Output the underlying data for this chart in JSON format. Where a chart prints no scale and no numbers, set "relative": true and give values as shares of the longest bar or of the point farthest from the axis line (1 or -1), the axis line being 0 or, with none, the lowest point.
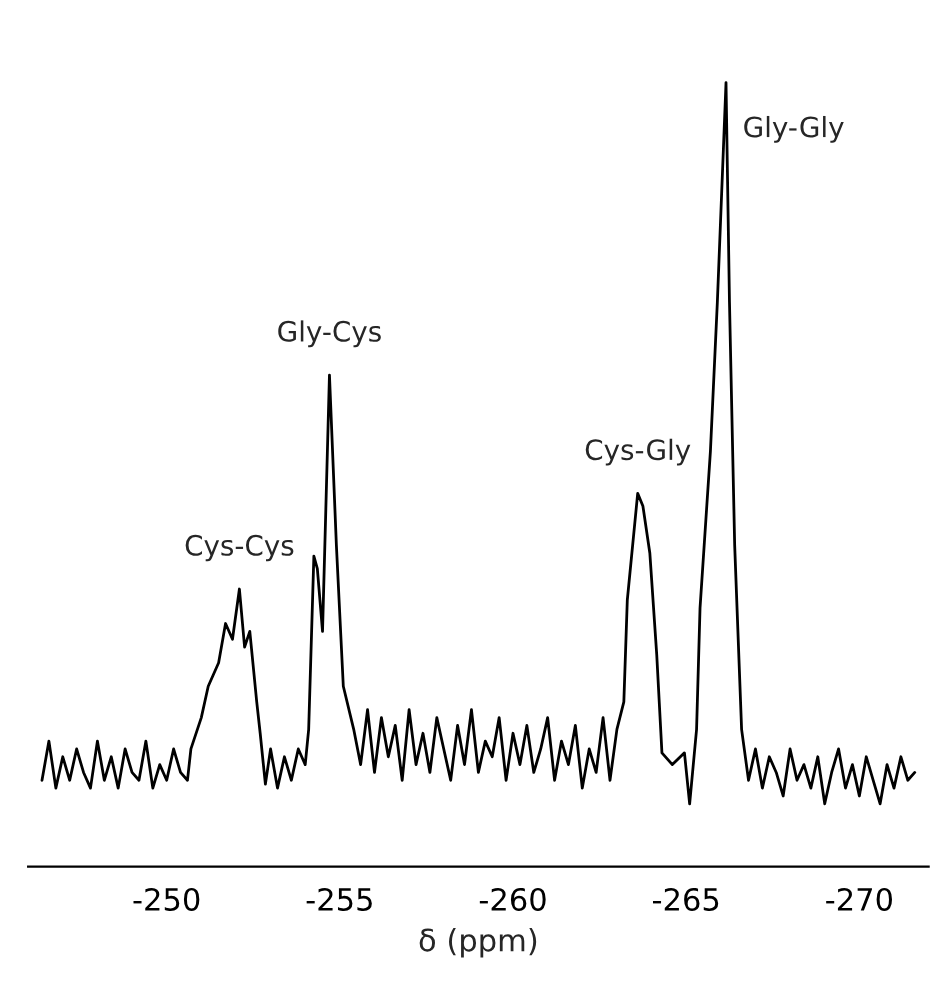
{
  "chart_data": {
    "type": "line",
    "relative": true,
    "xlabel": "δ (ppm)",
    "xlim": [
      -246.0,
      -272.0
    ],
    "xticks": [
      -250,
      -255,
      -260,
      -265,
      -270
    ],
    "grid": false,
    "marker": "none",
    "line_style": "solid",
    "series": [
      {
        "color": "#000000",
        "x": [
          -246.4,
          -246.6,
          -246.8,
          -247.0,
          -247.2,
          -247.4,
          -247.6,
          -247.8,
          -248.0,
          -248.2,
          -248.4,
          -248.6,
          -248.8,
          -249.0,
          -249.2,
          -249.4,
          -249.6,
          -249.8,
          -250.0,
          -250.2,
          -250.4,
          -250.6,
          -250.7,
          -251.0,
          -251.2,
          -251.5,
          -251.7,
          -251.9,
          -252.1,
          -252.25,
          -252.4,
          -252.6,
          -252.7,
          -252.85,
          -253.0,
          -253.2,
          -253.4,
          -253.6,
          -253.8,
          -254.0,
          -254.1,
          -254.25,
          -254.35,
          -254.5,
          -254.7,
          -254.9,
          -255.1,
          -255.4,
          -255.6,
          -255.8,
          -256.0,
          -256.2,
          -256.4,
          -256.6,
          -256.8,
          -257.0,
          -257.2,
          -257.4,
          -257.6,
          -257.8,
          -258.0,
          -258.2,
          -258.4,
          -258.6,
          -258.8,
          -259.0,
          -259.2,
          -259.4,
          -259.6,
          -259.8,
          -260.0,
          -260.2,
          -260.4,
          -260.6,
          -260.8,
          -261.0,
          -261.2,
          -261.4,
          -261.6,
          -261.8,
          -262.0,
          -262.2,
          -262.4,
          -262.6,
          -262.8,
          -263.0,
          -263.2,
          -263.3,
          -263.6,
          -263.75,
          -263.95,
          -264.15,
          -264.3,
          -264.6,
          -264.95,
          -265.1,
          -265.3,
          -265.4,
          -265.7,
          -265.9,
          -266.15,
          -266.25,
          -266.4,
          -266.6,
          -266.8,
          -267.0,
          -267.2,
          -267.4,
          -267.6,
          -267.8,
          -268.0,
          -268.2,
          -268.4,
          -268.6,
          -268.8,
          -269.0,
          -269.2,
          -269.4,
          -269.6,
          -269.8,
          -270.0,
          -270.2,
          -270.4,
          -270.6,
          -270.8,
          -271.0,
          -271.2,
          -271.4,
          -271.6
        ],
        "values": [
          0.11,
          0.16,
          0.1,
          0.14,
          0.11,
          0.15,
          0.12,
          0.1,
          0.16,
          0.11,
          0.14,
          0.1,
          0.15,
          0.12,
          0.11,
          0.16,
          0.1,
          0.13,
          0.11,
          0.15,
          0.12,
          0.11,
          0.15,
          0.19,
          0.23,
          0.26,
          0.31,
          0.29,
          0.354,
          0.28,
          0.3,
          0.21,
          0.17,
          0.105,
          0.15,
          0.1,
          0.14,
          0.11,
          0.15,
          0.13,
          0.175,
          0.396,
          0.38,
          0.3,
          0.627,
          0.41,
          0.23,
          0.175,
          0.13,
          0.2,
          0.12,
          0.19,
          0.14,
          0.18,
          0.11,
          0.2,
          0.13,
          0.17,
          0.12,
          0.19,
          0.15,
          0.11,
          0.18,
          0.13,
          0.2,
          0.12,
          0.16,
          0.14,
          0.19,
          0.11,
          0.17,
          0.13,
          0.18,
          0.12,
          0.15,
          0.19,
          0.11,
          0.16,
          0.13,
          0.18,
          0.1,
          0.15,
          0.12,
          0.19,
          0.11,
          0.175,
          0.21,
          0.34,
          0.476,
          0.46,
          0.4,
          0.27,
          0.145,
          0.13,
          0.145,
          0.08,
          0.175,
          0.33,
          0.53,
          0.72,
          1.0,
          0.72,
          0.41,
          0.175,
          0.11,
          0.15,
          0.1,
          0.14,
          0.12,
          0.09,
          0.15,
          0.11,
          0.13,
          0.1,
          0.14,
          0.08,
          0.12,
          0.15,
          0.1,
          0.13,
          0.09,
          0.14,
          0.11,
          0.08,
          0.13,
          0.1,
          0.14,
          0.11,
          0.12
        ]
      }
    ],
    "annotations": [
      {
        "text": "Cys-Cys",
        "x": -252.1,
        "y": 0.354
      },
      {
        "text": "Gly-Cys",
        "x": -254.7,
        "y": 0.627
      },
      {
        "text": "Cys-Gly",
        "x": -263.6,
        "y": 0.476
      },
      {
        "text": "Gly-Gly",
        "x": -266.15,
        "y": 1.0
      }
    ]
  }
}
